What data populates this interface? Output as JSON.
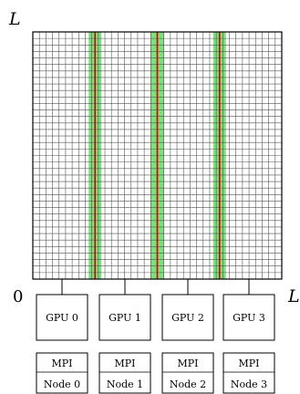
{
  "axis": {
    "y_top_label": "L",
    "x_right_label": "L",
    "origin_label": "0"
  },
  "grid": {
    "columns": 38,
    "rows": 38,
    "line_color": "#555555",
    "border_color": "#000000",
    "halo_band_color": "#7de07d",
    "boundary_line_color": "#d40000",
    "partition_boundaries_fraction": [
      0.25,
      0.5,
      0.75
    ]
  },
  "gpus": [
    {
      "label": "GPU 0"
    },
    {
      "label": "GPU 1"
    },
    {
      "label": "GPU 2"
    },
    {
      "label": "GPU 3"
    }
  ],
  "nodes": [
    {
      "line1": "MPI",
      "line2": "Node 0"
    },
    {
      "line1": "MPI",
      "line2": "Node 1"
    },
    {
      "line1": "MPI",
      "line2": "Node 2"
    },
    {
      "line1": "MPI",
      "line2": "Node 3"
    }
  ]
}
